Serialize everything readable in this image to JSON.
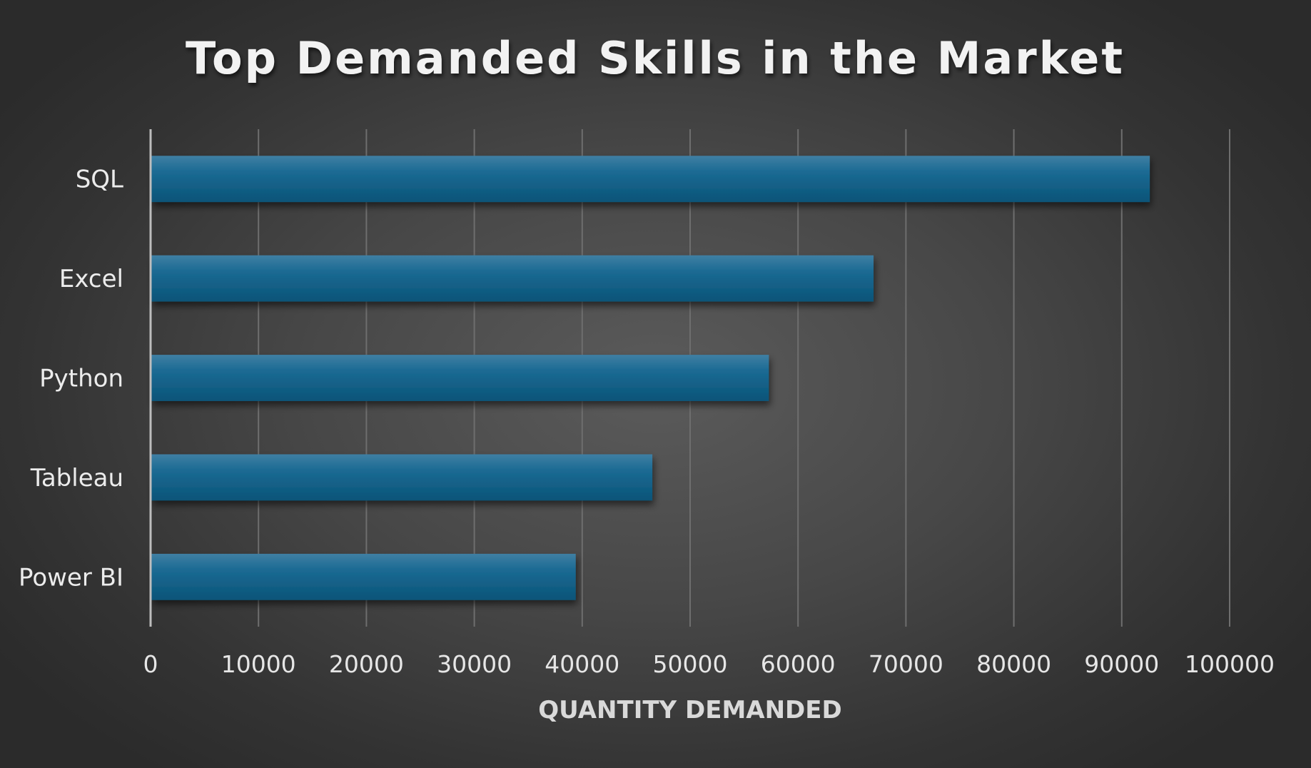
{
  "chart_data": {
    "type": "bar",
    "orientation": "horizontal",
    "title": "Top Demanded Skills in the Market",
    "xlabel": "QUANTITY DEMANDED",
    "ylabel": "",
    "categories": [
      "SQL",
      "Excel",
      "Python",
      "Tableau",
      "Power BI"
    ],
    "values": [
      92600,
      67000,
      57300,
      46500,
      39400
    ],
    "xlim": [
      0,
      100000
    ],
    "xticks": [
      "0",
      "10000",
      "20000",
      "30000",
      "40000",
      "50000",
      "60000",
      "70000",
      "80000",
      "90000",
      "100000"
    ],
    "grid": "vertical",
    "bar_color": "#1b6a93"
  }
}
